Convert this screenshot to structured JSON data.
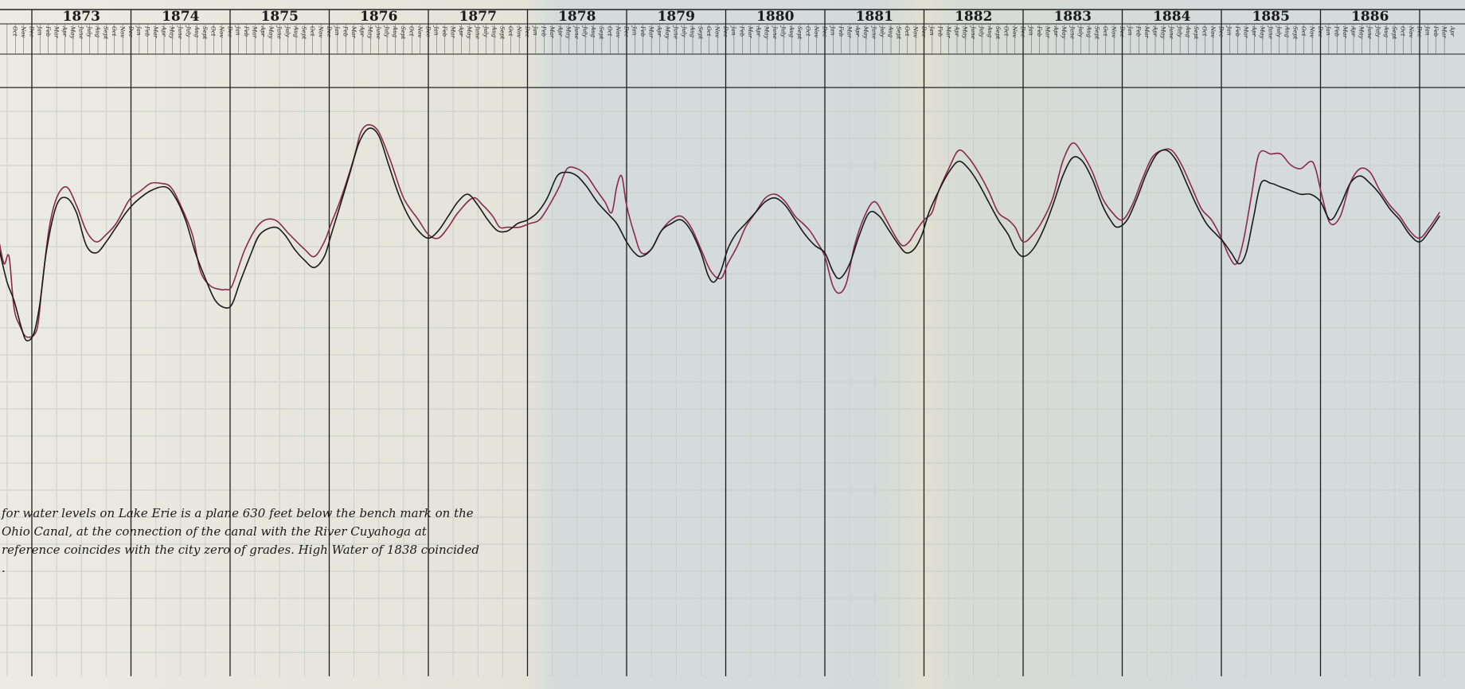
{
  "chart_data": {
    "type": "line",
    "title": "",
    "xlabel": "",
    "ylabel": "",
    "years": [
      "1873",
      "1874",
      "1875",
      "1876",
      "1877",
      "1878",
      "1879",
      "1880",
      "1881",
      "1882",
      "1883",
      "1884",
      "1885",
      "1886"
    ],
    "months": [
      "Jan",
      "Feb",
      "Mar",
      "Apr",
      "May",
      "June",
      "July",
      "Aug",
      "Sept",
      "Oct",
      "Nov",
      "Dec"
    ],
    "x_range": [
      1872.67,
      1887.3
    ],
    "y_range": [
      0,
      100
    ],
    "grid": true,
    "legend": "none",
    "series": [
      {
        "color": "#8a2a4a",
        "points": [
          [
            1872.67,
            60
          ],
          [
            1872.72,
            54
          ],
          [
            1872.77,
            56
          ],
          [
            1872.82,
            42
          ],
          [
            1872.88,
            37
          ],
          [
            1872.95,
            34
          ],
          [
            1873.05,
            36
          ],
          [
            1873.1,
            47
          ],
          [
            1873.17,
            63
          ],
          [
            1873.25,
            72
          ],
          [
            1873.35,
            75
          ],
          [
            1873.45,
            70
          ],
          [
            1873.55,
            63
          ],
          [
            1873.65,
            60
          ],
          [
            1873.75,
            62
          ],
          [
            1873.85,
            65
          ],
          [
            1873.95,
            70
          ],
          [
            1874.0,
            72
          ],
          [
            1874.1,
            74
          ],
          [
            1874.2,
            76
          ],
          [
            1874.3,
            76
          ],
          [
            1874.4,
            75
          ],
          [
            1874.5,
            70
          ],
          [
            1874.62,
            62
          ],
          [
            1874.7,
            52
          ],
          [
            1874.8,
            48
          ],
          [
            1874.9,
            47
          ],
          [
            1874.95,
            47
          ],
          [
            1875.02,
            48
          ],
          [
            1875.15,
            58
          ],
          [
            1875.3,
            65
          ],
          [
            1875.45,
            66
          ],
          [
            1875.6,
            62
          ],
          [
            1875.75,
            58
          ],
          [
            1875.85,
            56
          ],
          [
            1875.95,
            60
          ],
          [
            1876.02,
            65
          ],
          [
            1876.12,
            72
          ],
          [
            1876.25,
            83
          ],
          [
            1876.32,
            90
          ],
          [
            1876.4,
            92
          ],
          [
            1876.5,
            90
          ],
          [
            1876.62,
            82
          ],
          [
            1876.75,
            72
          ],
          [
            1876.9,
            66
          ],
          [
            1877.0,
            62
          ],
          [
            1877.1,
            61
          ],
          [
            1877.2,
            64
          ],
          [
            1877.3,
            68
          ],
          [
            1877.45,
            72
          ],
          [
            1877.55,
            70
          ],
          [
            1877.65,
            67
          ],
          [
            1877.72,
            64
          ],
          [
            1877.8,
            64
          ],
          [
            1877.92,
            64
          ],
          [
            1878.02,
            65
          ],
          [
            1878.12,
            66
          ],
          [
            1878.22,
            70
          ],
          [
            1878.32,
            75
          ],
          [
            1878.4,
            80
          ],
          [
            1878.5,
            80
          ],
          [
            1878.6,
            78
          ],
          [
            1878.7,
            74
          ],
          [
            1878.78,
            71
          ],
          [
            1878.85,
            68
          ],
          [
            1878.9,
            75
          ],
          [
            1878.95,
            78
          ],
          [
            1879.0,
            70
          ],
          [
            1879.08,
            62
          ],
          [
            1879.15,
            57
          ],
          [
            1879.25,
            58
          ],
          [
            1879.35,
            63
          ],
          [
            1879.45,
            66
          ],
          [
            1879.55,
            67
          ],
          [
            1879.65,
            64
          ],
          [
            1879.75,
            58
          ],
          [
            1879.85,
            52
          ],
          [
            1879.95,
            50
          ],
          [
            1880.02,
            54
          ],
          [
            1880.12,
            59
          ],
          [
            1880.2,
            64
          ],
          [
            1880.3,
            68
          ],
          [
            1880.4,
            72
          ],
          [
            1880.5,
            73
          ],
          [
            1880.6,
            71
          ],
          [
            1880.7,
            67
          ],
          [
            1880.78,
            65
          ],
          [
            1880.85,
            63
          ],
          [
            1880.92,
            60
          ],
          [
            1881.0,
            56
          ],
          [
            1881.08,
            48
          ],
          [
            1881.15,
            46
          ],
          [
            1881.22,
            49
          ],
          [
            1881.3,
            59
          ],
          [
            1881.4,
            67
          ],
          [
            1881.5,
            71
          ],
          [
            1881.6,
            67
          ],
          [
            1881.7,
            62
          ],
          [
            1881.78,
            59
          ],
          [
            1881.85,
            60
          ],
          [
            1881.92,
            63
          ],
          [
            1882.0,
            66
          ],
          [
            1882.08,
            68
          ],
          [
            1882.15,
            74
          ],
          [
            1882.25,
            80
          ],
          [
            1882.35,
            85
          ],
          [
            1882.45,
            83
          ],
          [
            1882.55,
            79
          ],
          [
            1882.65,
            74
          ],
          [
            1882.75,
            68
          ],
          [
            1882.85,
            66
          ],
          [
            1882.92,
            64
          ],
          [
            1883.0,
            60
          ],
          [
            1883.1,
            62
          ],
          [
            1883.2,
            66
          ],
          [
            1883.3,
            72
          ],
          [
            1883.4,
            82
          ],
          [
            1883.5,
            87
          ],
          [
            1883.6,
            84
          ],
          [
            1883.7,
            79
          ],
          [
            1883.8,
            72
          ],
          [
            1883.9,
            68
          ],
          [
            1884.0,
            66
          ],
          [
            1884.1,
            70
          ],
          [
            1884.2,
            77
          ],
          [
            1884.3,
            83
          ],
          [
            1884.4,
            85
          ],
          [
            1884.5,
            85
          ],
          [
            1884.6,
            81
          ],
          [
            1884.7,
            75
          ],
          [
            1884.8,
            69
          ],
          [
            1884.9,
            66
          ],
          [
            1885.0,
            61
          ],
          [
            1885.08,
            56
          ],
          [
            1885.15,
            54
          ],
          [
            1885.22,
            60
          ],
          [
            1885.3,
            72
          ],
          [
            1885.38,
            84
          ],
          [
            1885.5,
            84
          ],
          [
            1885.6,
            84
          ],
          [
            1885.7,
            81
          ],
          [
            1885.8,
            80
          ],
          [
            1885.9,
            82
          ],
          [
            1885.95,
            80
          ],
          [
            1886.02,
            72
          ],
          [
            1886.1,
            65
          ],
          [
            1886.2,
            67
          ],
          [
            1886.3,
            76
          ],
          [
            1886.4,
            80
          ],
          [
            1886.5,
            79
          ],
          [
            1886.6,
            74
          ],
          [
            1886.7,
            70
          ],
          [
            1886.8,
            67
          ],
          [
            1886.9,
            63
          ],
          [
            1887.0,
            61
          ],
          [
            1887.1,
            64
          ],
          [
            1887.2,
            68
          ]
        ]
      },
      {
        "color": "#1a1a1a",
        "points": [
          [
            1872.67,
            58
          ],
          [
            1872.75,
            49
          ],
          [
            1872.82,
            44
          ],
          [
            1872.9,
            36
          ],
          [
            1872.95,
            33
          ],
          [
            1873.02,
            35
          ],
          [
            1873.08,
            43
          ],
          [
            1873.15,
            58
          ],
          [
            1873.25,
            70
          ],
          [
            1873.35,
            72
          ],
          [
            1873.45,
            68
          ],
          [
            1873.55,
            59
          ],
          [
            1873.65,
            57
          ],
          [
            1873.75,
            60
          ],
          [
            1873.85,
            64
          ],
          [
            1873.95,
            68
          ],
          [
            1874.05,
            71
          ],
          [
            1874.2,
            74
          ],
          [
            1874.35,
            75
          ],
          [
            1874.45,
            72
          ],
          [
            1874.55,
            66
          ],
          [
            1874.65,
            57
          ],
          [
            1874.75,
            50
          ],
          [
            1874.85,
            44
          ],
          [
            1874.95,
            42
          ],
          [
            1875.02,
            43
          ],
          [
            1875.1,
            49
          ],
          [
            1875.2,
            56
          ],
          [
            1875.3,
            62
          ],
          [
            1875.45,
            64
          ],
          [
            1875.55,
            62
          ],
          [
            1875.65,
            58
          ],
          [
            1875.75,
            55
          ],
          [
            1875.85,
            53
          ],
          [
            1875.95,
            56
          ],
          [
            1876.02,
            62
          ],
          [
            1876.1,
            69
          ],
          [
            1876.2,
            78
          ],
          [
            1876.3,
            87
          ],
          [
            1876.4,
            91
          ],
          [
            1876.5,
            89
          ],
          [
            1876.6,
            81
          ],
          [
            1876.7,
            73
          ],
          [
            1876.8,
            67
          ],
          [
            1876.9,
            63
          ],
          [
            1877.0,
            61
          ],
          [
            1877.1,
            63
          ],
          [
            1877.2,
            67
          ],
          [
            1877.3,
            71
          ],
          [
            1877.4,
            73
          ],
          [
            1877.5,
            70
          ],
          [
            1877.6,
            66
          ],
          [
            1877.7,
            63
          ],
          [
            1877.8,
            63
          ],
          [
            1877.9,
            65
          ],
          [
            1878.0,
            66
          ],
          [
            1878.1,
            68
          ],
          [
            1878.2,
            72
          ],
          [
            1878.3,
            78
          ],
          [
            1878.4,
            79
          ],
          [
            1878.5,
            78
          ],
          [
            1878.6,
            75
          ],
          [
            1878.7,
            71
          ],
          [
            1878.8,
            68
          ],
          [
            1878.9,
            65
          ],
          [
            1879.0,
            60
          ],
          [
            1879.08,
            57
          ],
          [
            1879.15,
            56
          ],
          [
            1879.25,
            58
          ],
          [
            1879.35,
            63
          ],
          [
            1879.45,
            65
          ],
          [
            1879.55,
            66
          ],
          [
            1879.65,
            63
          ],
          [
            1879.75,
            57
          ],
          [
            1879.82,
            51
          ],
          [
            1879.88,
            49
          ],
          [
            1879.95,
            52
          ],
          [
            1880.02,
            58
          ],
          [
            1880.1,
            62
          ],
          [
            1880.2,
            65
          ],
          [
            1880.3,
            68
          ],
          [
            1880.4,
            71
          ],
          [
            1880.5,
            72
          ],
          [
            1880.6,
            70
          ],
          [
            1880.7,
            66
          ],
          [
            1880.8,
            62
          ],
          [
            1880.9,
            59
          ],
          [
            1881.0,
            57
          ],
          [
            1881.08,
            52
          ],
          [
            1881.15,
            50
          ],
          [
            1881.25,
            54
          ],
          [
            1881.35,
            62
          ],
          [
            1881.45,
            68
          ],
          [
            1881.55,
            67
          ],
          [
            1881.65,
            63
          ],
          [
            1881.75,
            59
          ],
          [
            1881.82,
            57
          ],
          [
            1881.9,
            58
          ],
          [
            1881.98,
            62
          ],
          [
            1882.05,
            68
          ],
          [
            1882.15,
            74
          ],
          [
            1882.25,
            79
          ],
          [
            1882.35,
            82
          ],
          [
            1882.45,
            80
          ],
          [
            1882.55,
            76
          ],
          [
            1882.65,
            71
          ],
          [
            1882.75,
            66
          ],
          [
            1882.85,
            62
          ],
          [
            1882.92,
            58
          ],
          [
            1883.0,
            56
          ],
          [
            1883.1,
            58
          ],
          [
            1883.2,
            63
          ],
          [
            1883.3,
            70
          ],
          [
            1883.4,
            78
          ],
          [
            1883.5,
            83
          ],
          [
            1883.6,
            82
          ],
          [
            1883.7,
            77
          ],
          [
            1883.8,
            70
          ],
          [
            1883.88,
            66
          ],
          [
            1883.95,
            64
          ],
          [
            1884.05,
            66
          ],
          [
            1884.15,
            72
          ],
          [
            1884.25,
            79
          ],
          [
            1884.35,
            84
          ],
          [
            1884.45,
            85
          ],
          [
            1884.55,
            82
          ],
          [
            1884.65,
            76
          ],
          [
            1884.75,
            70
          ],
          [
            1884.85,
            65
          ],
          [
            1884.95,
            62
          ],
          [
            1885.02,
            60
          ],
          [
            1885.1,
            57
          ],
          [
            1885.18,
            54
          ],
          [
            1885.25,
            57
          ],
          [
            1885.32,
            66
          ],
          [
            1885.4,
            76
          ],
          [
            1885.5,
            76
          ],
          [
            1885.6,
            75
          ],
          [
            1885.7,
            74
          ],
          [
            1885.8,
            73
          ],
          [
            1885.9,
            73
          ],
          [
            1886.0,
            71
          ],
          [
            1886.1,
            66
          ],
          [
            1886.2,
            70
          ],
          [
            1886.3,
            76
          ],
          [
            1886.4,
            78
          ],
          [
            1886.5,
            76
          ],
          [
            1886.6,
            73
          ],
          [
            1886.7,
            69
          ],
          [
            1886.8,
            66
          ],
          [
            1886.9,
            62
          ],
          [
            1887.0,
            60
          ],
          [
            1887.1,
            63
          ],
          [
            1887.2,
            67
          ]
        ]
      }
    ],
    "annotation_lines": [
      "for water levels on Lake Erie is a plane 630 feet below the bench mark on the",
      "Ohio Canal, at the connection of the canal with the River Cuyahoga at",
      "reference coincides with the city zero of grades. High Water of 1838 coincided",
      "."
    ]
  }
}
